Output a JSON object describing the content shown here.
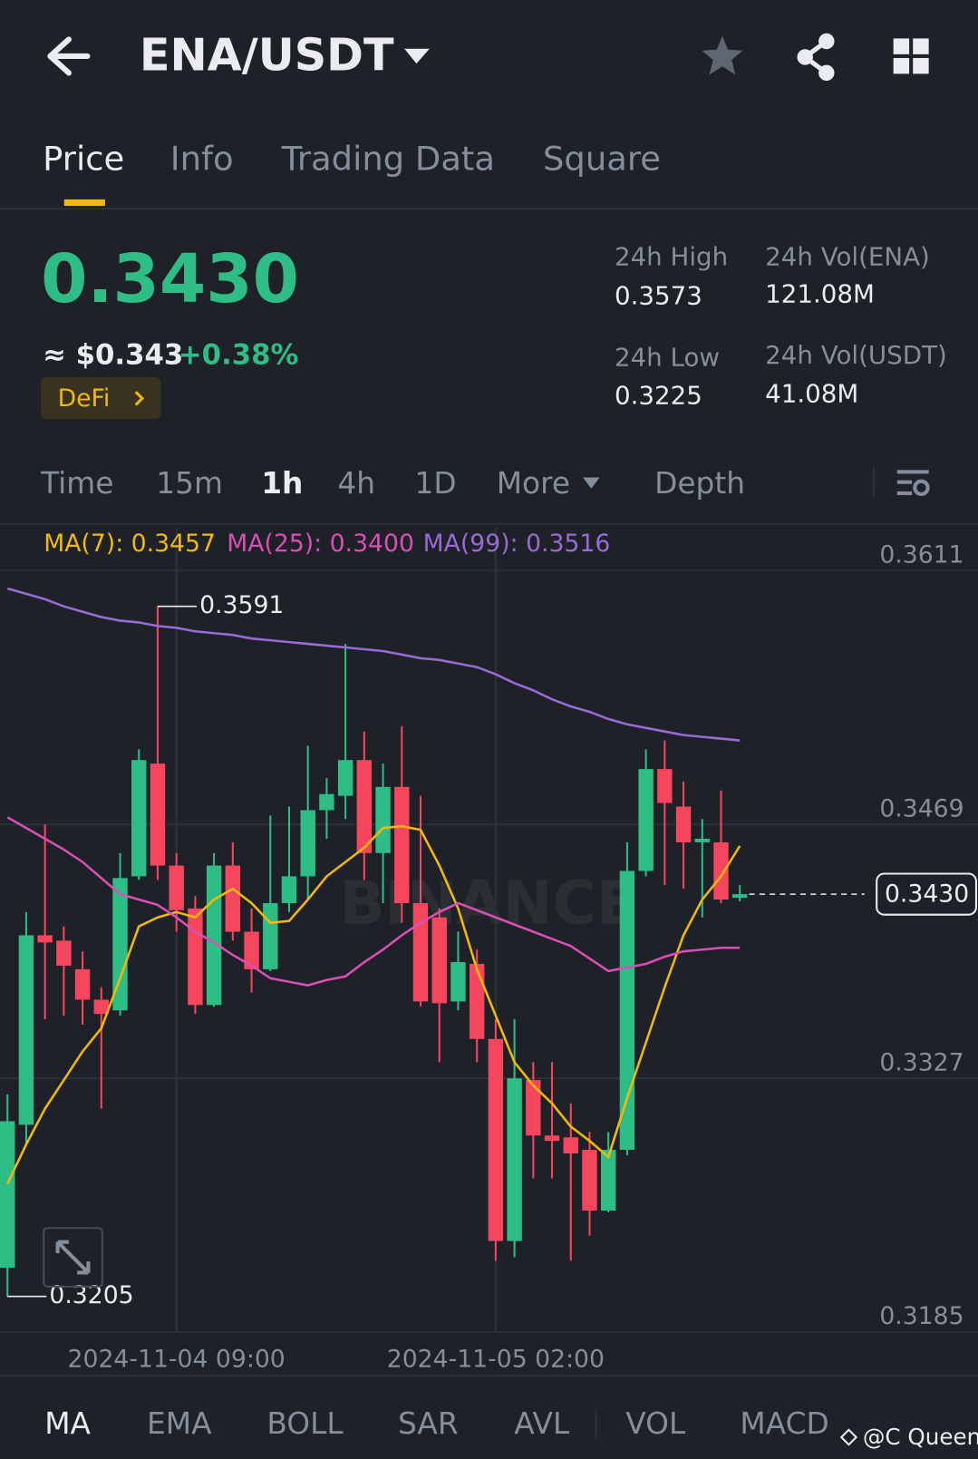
{
  "header": {
    "pair": "ENA/USDT"
  },
  "tabs": [
    "Price",
    "Info",
    "Trading Data",
    "Square"
  ],
  "ticker": {
    "price": "0.3430",
    "usd": "≈ $0.343",
    "change": "+0.38%",
    "tag": "DeFi",
    "stats": [
      {
        "label": "24h High",
        "value": "0.3573"
      },
      {
        "label": "24h Vol(ENA)",
        "value": "121.08M"
      },
      {
        "label": "24h Low",
        "value": "0.3225"
      },
      {
        "label": "24h Vol(USDT)",
        "value": "41.08M"
      }
    ]
  },
  "intervals": [
    "Time",
    "15m",
    "1h",
    "4h",
    "1D",
    "More",
    "Depth"
  ],
  "indicators": [
    "MA",
    "EMA",
    "BOLL",
    "SAR",
    "AVL",
    "VOL",
    "MACD"
  ],
  "watermark": "BINANCE",
  "credit": "@C Queen",
  "chart_data": {
    "type": "candlestick",
    "categories": [
      null,
      null,
      null,
      null,
      null,
      null,
      null,
      null,
      null,
      "2024-11-04 09:00",
      null,
      null,
      null,
      null,
      null,
      null,
      null,
      null,
      null,
      null,
      null,
      null,
      null,
      null,
      null,
      null,
      "2024-11-05 02:00",
      null,
      null,
      null,
      null,
      null,
      null,
      null,
      null,
      null,
      null,
      null,
      null,
      null
    ],
    "open": [
      0.3221,
      0.3301,
      0.3407,
      0.3404,
      0.3388,
      0.3371,
      0.3365,
      0.344,
      0.3503,
      0.3446,
      0.3422,
      0.3368,
      0.3446,
      0.3409,
      0.3388,
      0.3425,
      0.344,
      0.3477,
      0.3485,
      0.3505,
      0.3453,
      0.349,
      0.3425,
      0.3417,
      0.337,
      0.3391,
      0.3349,
      0.3236,
      0.3326,
      0.3295,
      0.3294,
      0.3287,
      0.3253,
      0.3287,
      0.3443,
      0.35,
      0.3479,
      0.3459,
      0.3459,
      0.3428
    ],
    "high": [
      0.3318,
      0.342,
      0.3469,
      0.3412,
      0.3398,
      0.3378,
      0.3453,
      0.3511,
      0.3591,
      0.3453,
      0.3429,
      0.3453,
      0.3459,
      0.3422,
      0.3474,
      0.3479,
      0.3513,
      0.3495,
      0.357,
      0.3521,
      0.3503,
      0.3524,
      0.3485,
      0.3422,
      0.3409,
      0.3399,
      0.336,
      0.336,
      0.3336,
      0.3336,
      0.3313,
      0.3297,
      0.3297,
      0.3459,
      0.3511,
      0.3516,
      0.3493,
      0.3472,
      0.3488,
      0.3435
    ],
    "low": [
      0.3205,
      0.329,
      0.336,
      0.3362,
      0.3357,
      0.331,
      0.3362,
      0.3438,
      0.3438,
      0.3409,
      0.3363,
      0.3367,
      0.3404,
      0.3375,
      0.3387,
      0.342,
      0.3427,
      0.3461,
      0.3472,
      0.3438,
      0.3425,
      0.3414,
      0.3367,
      0.3336,
      0.3365,
      0.3336,
      0.3225,
      0.3227,
      0.3271,
      0.3271,
      0.3225,
      0.3239,
      0.3252,
      0.3284,
      0.344,
      0.3435,
      0.3433,
      0.3417,
      0.3425,
      0.3426
    ],
    "close": [
      0.3303,
      0.3407,
      0.3403,
      0.339,
      0.3371,
      0.3363,
      0.3439,
      0.3505,
      0.3446,
      0.3421,
      0.3368,
      0.3446,
      0.3409,
      0.3388,
      0.3425,
      0.344,
      0.3477,
      0.3486,
      0.3505,
      0.3453,
      0.349,
      0.3425,
      0.337,
      0.3369,
      0.3392,
      0.3349,
      0.3236,
      0.3327,
      0.3295,
      0.3292,
      0.3285,
      0.3253,
      0.3287,
      0.3443,
      0.35,
      0.3481,
      0.3459,
      0.3461,
      0.3427,
      0.343
    ],
    "up_color": "#2ebd85",
    "down_color": "#f6465d",
    "series": [
      {
        "name": "MA(7): 0.3457",
        "color": "#f0b90b",
        "values": [
          0.3268,
          0.329,
          0.331,
          0.3326,
          0.3342,
          0.3355,
          0.3383,
          0.3412,
          0.3417,
          0.342,
          0.3417,
          0.3427,
          0.3433,
          0.3425,
          0.3414,
          0.3415,
          0.3427,
          0.344,
          0.3448,
          0.3456,
          0.3467,
          0.3468,
          0.3466,
          0.3446,
          0.3422,
          0.3388,
          0.3362,
          0.3336,
          0.3323,
          0.3313,
          0.33,
          0.3292,
          0.3283,
          0.3316,
          0.3347,
          0.3378,
          0.3407,
          0.3427,
          0.344,
          0.3457
        ]
      },
      {
        "name": "MA(25): 0.3400",
        "color": "#d94fb5",
        "values": [
          0.3473,
          0.3467,
          0.3461,
          0.3455,
          0.3448,
          0.3439,
          0.343,
          0.3427,
          0.3424,
          0.3417,
          0.3409,
          0.3403,
          0.3396,
          0.339,
          0.3383,
          0.3381,
          0.3379,
          0.3382,
          0.3384,
          0.3392,
          0.3399,
          0.3407,
          0.3414,
          0.342,
          0.3425,
          0.3421,
          0.3417,
          0.3413,
          0.3409,
          0.3405,
          0.3401,
          0.3394,
          0.3387,
          0.3389,
          0.3391,
          0.3395,
          0.3398,
          0.3399,
          0.34,
          0.34
        ]
      },
      {
        "name": "MA(99): 0.3516",
        "color": "#9a6bd6",
        "values": [
          0.3601,
          0.3598,
          0.3595,
          0.3591,
          0.3588,
          0.3585,
          0.3583,
          0.3582,
          0.358,
          0.3579,
          0.3577,
          0.3576,
          0.3575,
          0.3573,
          0.3572,
          0.3571,
          0.357,
          0.3569,
          0.3568,
          0.3567,
          0.3566,
          0.3564,
          0.3562,
          0.3561,
          0.3559,
          0.3557,
          0.3553,
          0.3548,
          0.3544,
          0.3539,
          0.3535,
          0.3532,
          0.3528,
          0.3525,
          0.3523,
          0.3521,
          0.3519,
          0.3518,
          0.3517,
          0.3516
        ]
      }
    ],
    "annotations": [
      "0.3591",
      "0.3205"
    ],
    "last_price": {
      "value": 0.343,
      "label": "0.3430"
    },
    "ylim": [
      0.3185,
      0.3635
    ],
    "yticks": [
      0.3611,
      0.3469,
      0.3327,
      0.3185
    ],
    "grid": true
  }
}
